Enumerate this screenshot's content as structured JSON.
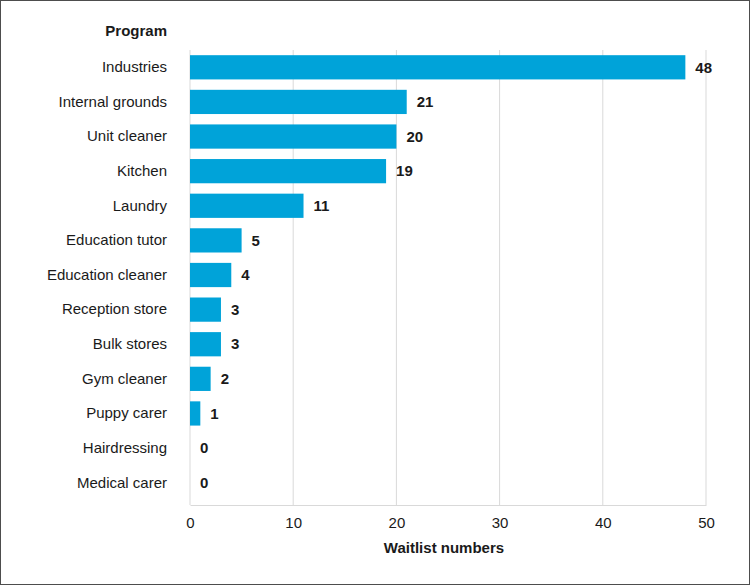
{
  "chart_data": {
    "type": "bar",
    "orientation": "horizontal",
    "x_label": "Waitlist numbers",
    "y_label": "Program",
    "categories": [
      "Industries",
      "Internal grounds",
      "Unit cleaner",
      "Kitchen",
      "Laundry",
      "Education tutor",
      "Education cleaner",
      "Reception store",
      "Bulk stores",
      "Gym cleaner",
      "Puppy carer",
      "Hairdressing",
      "Medical carer"
    ],
    "values": [
      48,
      21,
      20,
      19,
      11,
      5,
      4,
      3,
      3,
      2,
      1,
      0,
      0
    ],
    "color": "#00a3d9",
    "xlim": [
      0,
      50
    ],
    "xticks": [
      0,
      10,
      20,
      30,
      40,
      50
    ],
    "grid": true,
    "data_labels": true
  }
}
